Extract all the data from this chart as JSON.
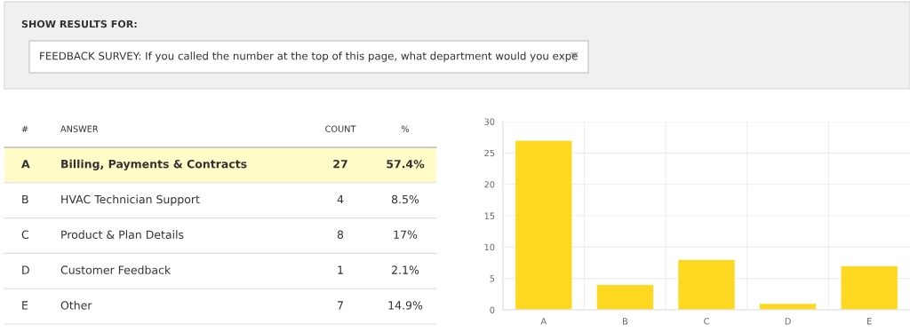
{
  "chart_data": {
    "type": "bar",
    "title": "SHOW RESULTS FOR:",
    "subtitle": "FEEDBACK SURVEY: If you called the number at the top of this page, what department would you expe",
    "annotations": [
      "#",
      "ANSWER",
      "COUNT",
      "%",
      "A",
      "Billing, Payments & Contracts",
      "27",
      "57.4%",
      "B",
      "HVAC Technician Support",
      "4",
      "8.5%",
      "C",
      "Product & Plan Details",
      "8",
      "17%",
      "D",
      "Customer Feedback",
      "1",
      "2.1%",
      "E",
      "Other",
      "7",
      "14.9%"
    ],
    "categories": [
      "A",
      "B",
      "C",
      "D",
      "E"
    ],
    "values": [
      27,
      4,
      8,
      1,
      7
    ],
    "color": "#fcd920",
    "ylim": [
      0,
      30
    ],
    "yticks": [
      0,
      5,
      10,
      15,
      20,
      25,
      30
    ],
    "grid": true
  }
}
